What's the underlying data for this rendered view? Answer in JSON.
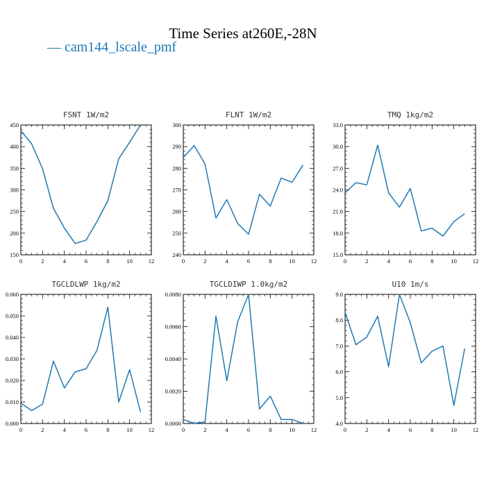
{
  "title": "Time Series at260E,-28N",
  "legend": {
    "label": "cam144_lscale_pmf",
    "marker": "—",
    "color": "#1f77b4"
  },
  "chart_data": [
    {
      "type": "line",
      "title": "FSNT   1W/m2",
      "x": [
        0,
        1,
        2,
        3,
        4,
        5,
        6,
        7,
        8,
        9,
        10,
        11
      ],
      "xlim": [
        0,
        12
      ],
      "xticks": [
        "0",
        "2",
        "4",
        "6",
        "8",
        "10",
        "12"
      ],
      "ylim": [
        150,
        450
      ],
      "yticks": [
        "150",
        "200",
        "250",
        "300",
        "350",
        "400",
        "450"
      ],
      "series": [
        {
          "values": [
            437,
            406,
            349,
            257,
            212,
            176,
            184,
            227,
            275,
            372,
            410,
            450
          ]
        }
      ]
    },
    {
      "type": "line",
      "title": "FLNT   1W/m2",
      "x": [
        0,
        1,
        2,
        3,
        4,
        5,
        6,
        7,
        8,
        9,
        10,
        11
      ],
      "xlim": [
        0,
        12
      ],
      "xticks": [
        "0",
        "2",
        "4",
        "6",
        "8",
        "10",
        "12"
      ],
      "ylim": [
        240,
        300
      ],
      "yticks": [
        "240",
        "250",
        "260",
        "270",
        "280",
        "290",
        "300"
      ],
      "series": [
        {
          "values": [
            285,
            290.5,
            282,
            257,
            265.5,
            254.5,
            249.5,
            268,
            262.5,
            275.5,
            273.5,
            281.5
          ]
        }
      ]
    },
    {
      "type": "line",
      "title": "TMQ   1kg/m2",
      "x": [
        0,
        1,
        2,
        3,
        4,
        5,
        6,
        7,
        8,
        9,
        10,
        11
      ],
      "xlim": [
        0,
        12
      ],
      "xticks": [
        "0",
        "2",
        "4",
        "6",
        "8",
        "10",
        "12"
      ],
      "ylim": [
        15,
        33
      ],
      "yticks": [
        "15.0",
        "18.0",
        "21.0",
        "24.0",
        "27.0",
        "30.0",
        "33.0"
      ],
      "series": [
        {
          "values": [
            23.6,
            25,
            24.7,
            30.2,
            23.6,
            21.6,
            24.2,
            18.3,
            18.7,
            17.6,
            19.6,
            20.7
          ]
        }
      ]
    },
    {
      "type": "line",
      "title": "TGCLDLWP   1kg/m2",
      "x": [
        0,
        1,
        2,
        3,
        4,
        5,
        6,
        7,
        8,
        9,
        10,
        11
      ],
      "xlim": [
        0,
        12
      ],
      "xticks": [
        "0",
        "2",
        "4",
        "6",
        "8",
        "10",
        "12"
      ],
      "ylim": [
        0,
        0.06
      ],
      "yticks": [
        "0.000",
        "0.010",
        "0.020",
        "0.030",
        "0.040",
        "0.050",
        "0.060"
      ],
      "series": [
        {
          "values": [
            0.0095,
            0.006,
            0.009,
            0.029,
            0.0165,
            0.024,
            0.0255,
            0.034,
            0.054,
            0.01,
            0.025,
            0.0055
          ]
        }
      ]
    },
    {
      "type": "line",
      "title": "TGCLDIWP   1.0kg/m2",
      "x": [
        0,
        1,
        2,
        3,
        4,
        5,
        6,
        7,
        8,
        9,
        10,
        11
      ],
      "xlim": [
        0,
        12
      ],
      "xticks": [
        "0",
        "2",
        "4",
        "6",
        "8",
        "10",
        "12"
      ],
      "ylim": [
        0,
        0.008
      ],
      "yticks": [
        "0.0000",
        "0.0020",
        "0.0040",
        "0.0060",
        "0.0080"
      ],
      "series": [
        {
          "values": [
            0.00025,
            1e-05,
            0.0001,
            0.00665,
            0.00265,
            0.0063,
            0.008,
            0.0009,
            0.0017,
            0.00025,
            0.00025,
            1e-05
          ]
        }
      ]
    },
    {
      "type": "line",
      "title": "U10   1m/s",
      "x": [
        0,
        1,
        2,
        3,
        4,
        5,
        6,
        7,
        8,
        9,
        10,
        11
      ],
      "xlim": [
        0,
        12
      ],
      "xticks": [
        "0",
        "2",
        "4",
        "6",
        "8",
        "10",
        "12"
      ],
      "ylim": [
        4,
        9
      ],
      "yticks": [
        "4.0",
        "5.0",
        "6.0",
        "7.0",
        "8.0",
        "9.0"
      ],
      "series": [
        {
          "values": [
            8.3,
            7.05,
            7.35,
            8.15,
            6.2,
            9.0,
            7.9,
            6.35,
            6.8,
            7.0,
            4.7,
            6.9
          ]
        }
      ]
    }
  ],
  "colors": {
    "line": "#1f77b4",
    "axis": "#000000"
  }
}
